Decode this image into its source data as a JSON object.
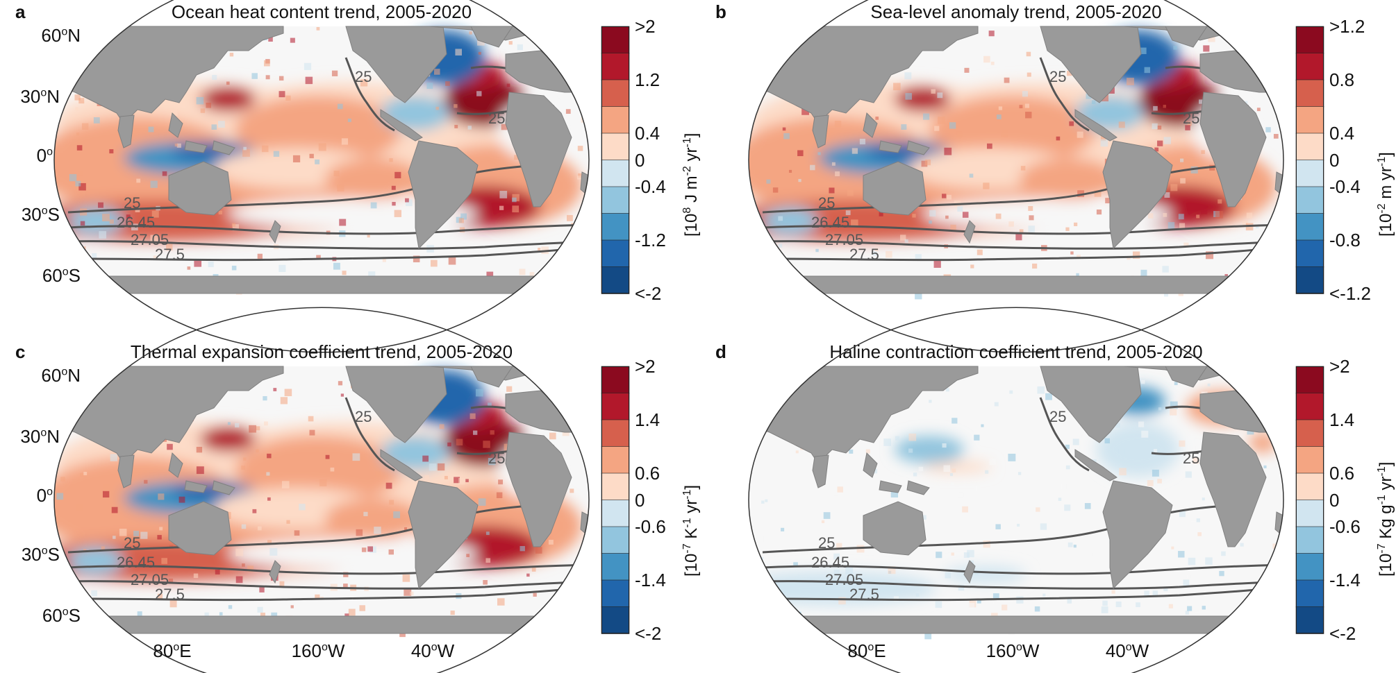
{
  "colors": {
    "land": "#9a9a9a",
    "ocean_neutral": "#f7f7f7",
    "contour": "#555555",
    "scale": [
      "#134a85",
      "#2166ac",
      "#4393c3",
      "#92c5de",
      "#d1e5f0",
      "#f7f7f7",
      "#fddbc7",
      "#f4a582",
      "#d6604d",
      "#b2182b",
      "#8b0a1f"
    ]
  },
  "lat_labels": [
    {
      "deg": "60",
      "sup": "o",
      "hem": "N"
    },
    {
      "deg": "30",
      "sup": "o",
      "hem": "N"
    },
    {
      "deg": "0",
      "sup": "o",
      "hem": ""
    },
    {
      "deg": "30",
      "sup": "o",
      "hem": "S"
    },
    {
      "deg": "60",
      "sup": "o",
      "hem": "S"
    }
  ],
  "lon_labels": [
    {
      "deg": "80",
      "sup": "o",
      "hem": "E"
    },
    {
      "deg": "160",
      "sup": "o",
      "hem": "W"
    },
    {
      "deg": "40",
      "sup": "o",
      "hem": "W"
    }
  ],
  "contour_labels": [
    "25",
    "26.45",
    "27.05",
    "27.5"
  ],
  "panels": [
    {
      "letter": "a",
      "title": "Ocean heat content trend, 2005-2020",
      "ticks": [
        ">2",
        "1.2",
        "0.4",
        "0",
        "-0.4",
        "-1.2",
        "<-2"
      ],
      "unit": {
        "pre": "[10",
        "exp1": "8",
        "mid": " J m",
        "exp2": "-2",
        "mid2": " yr",
        "exp3": "-1",
        "post": "]"
      },
      "style": "warm"
    },
    {
      "letter": "b",
      "title": "Sea-level anomaly trend, 2005-2020",
      "ticks": [
        ">1.2",
        "0.8",
        "0.4",
        "0",
        "-0.4",
        "-0.8",
        "<-1.2"
      ],
      "unit": {
        "pre": "[10",
        "exp1": "-2",
        "mid": " m yr",
        "exp2": "-1",
        "mid2": "",
        "exp3": "",
        "post": "]"
      },
      "style": "warm"
    },
    {
      "letter": "c",
      "title": "Thermal expansion coefficient trend, 2005-2020",
      "ticks": [
        ">2",
        "1.4",
        "0.6",
        "0",
        "-0.6",
        "-1.4",
        "<-2"
      ],
      "unit": {
        "pre": "[10",
        "exp1": "-7",
        "mid": " K",
        "exp2": "-1",
        "mid2": " yr",
        "exp3": "-1",
        "post": "]"
      },
      "style": "warm"
    },
    {
      "letter": "d",
      "title": "Haline contraction coefficient trend, 2005-2020",
      "ticks": [
        ">2",
        "1.4",
        "0.6",
        "0",
        "-0.6",
        "-1.4",
        "<-2"
      ],
      "unit": {
        "pre": "[10",
        "exp1": "-7",
        "mid": " Kg g",
        "exp2": "-1",
        "mid2": " yr",
        "exp3": "-1",
        "post": "]"
      },
      "style": "neutral"
    }
  ]
}
